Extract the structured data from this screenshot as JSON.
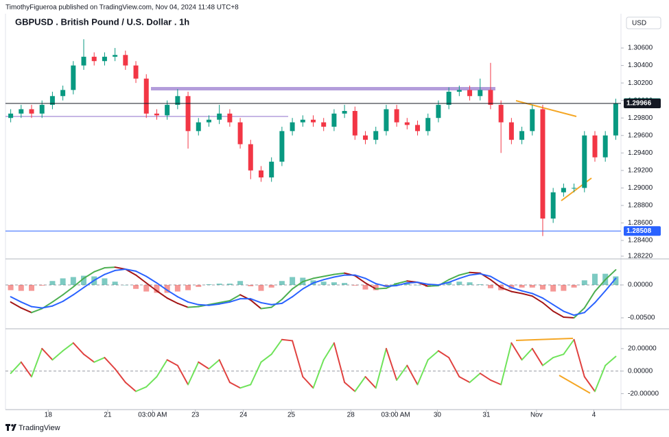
{
  "header": {
    "publisher": "TimothyFigueroa published on TradingView.com, Nov 04, 2024 11:48 UTC+8",
    "currency": "USD"
  },
  "footer": {
    "brand": "TradingView"
  },
  "chart_data": [
    {
      "type": "candlestick",
      "title": "GBPUSD . British Pound / U.S. Dollar . 1h",
      "up_color": "#089981",
      "down_color": "#f23645",
      "open": [
        1.298,
        1.2985,
        1.299,
        1.2985,
        1.2995,
        1.3005,
        1.3012,
        1.304,
        1.305,
        1.3045,
        1.305,
        1.3052,
        1.304,
        1.3025,
        1.2985,
        1.2983,
        1.2995,
        1.3005,
        1.2965,
        1.2975,
        1.2978,
        1.2985,
        1.2975,
        1.295,
        1.292,
        1.2912,
        1.293,
        1.2965,
        1.2975,
        1.2978,
        1.2975,
        1.297,
        1.2985,
        1.2988,
        1.296,
        1.2955,
        1.2965,
        1.299,
        1.2975,
        1.2972,
        1.2965,
        1.298,
        1.2995,
        1.301,
        1.3012,
        1.3005,
        1.3012,
        1.2995,
        1.2975,
        1.2955,
        1.2965,
        1.299,
        1.2865,
        1.2895,
        1.29,
        1.29,
        1.296,
        1.2935,
        1.296
      ],
      "high": [
        1.299,
        1.2995,
        1.2995,
        1.3,
        1.301,
        1.3017,
        1.3045,
        1.307,
        1.3055,
        1.3055,
        1.306,
        1.3057,
        1.3045,
        1.303,
        1.299,
        1.3,
        1.3013,
        1.301,
        1.298,
        1.2983,
        1.2995,
        1.299,
        1.298,
        1.2955,
        1.2925,
        1.2935,
        1.297,
        1.298,
        1.2983,
        1.2983,
        1.298,
        1.299,
        1.2995,
        1.2993,
        1.2965,
        1.297,
        1.2995,
        1.2995,
        1.298,
        1.2977,
        1.2985,
        1.3,
        1.3015,
        1.3017,
        1.3017,
        1.3025,
        1.3043,
        1.3,
        1.298,
        1.297,
        1.2995,
        1.2995,
        1.29,
        1.2905,
        1.2905,
        1.2965,
        1.2965,
        1.2965,
        1.3002
      ],
      "low": [
        1.2975,
        1.298,
        1.298,
        1.298,
        1.299,
        1.3,
        1.3007,
        1.3035,
        1.304,
        1.304,
        1.3045,
        1.3035,
        1.302,
        1.298,
        1.2978,
        1.2978,
        1.299,
        1.2945,
        1.296,
        1.297,
        1.2973,
        1.297,
        1.2945,
        1.291,
        1.2907,
        1.2907,
        1.2925,
        1.296,
        1.297,
        1.297,
        1.2965,
        1.2965,
        1.298,
        1.2955,
        1.295,
        1.295,
        1.296,
        1.297,
        1.2967,
        1.296,
        1.296,
        1.2975,
        1.299,
        1.3005,
        1.3,
        1.3,
        1.299,
        1.294,
        1.295,
        1.295,
        1.296,
        1.2845,
        1.286,
        1.289,
        1.2895,
        1.2895,
        1.293,
        1.293,
        1.2955
      ],
      "close": [
        1.2985,
        1.299,
        1.2985,
        1.2995,
        1.3005,
        1.3012,
        1.304,
        1.305,
        1.3045,
        1.305,
        1.3052,
        1.304,
        1.3025,
        1.2985,
        1.2983,
        1.2995,
        1.3005,
        1.2965,
        1.2975,
        1.2978,
        1.2985,
        1.2975,
        1.295,
        1.292,
        1.2912,
        1.293,
        1.2965,
        1.2975,
        1.2978,
        1.2975,
        1.297,
        1.2985,
        1.2988,
        1.296,
        1.2955,
        1.2965,
        1.299,
        1.2975,
        1.2972,
        1.2965,
        1.298,
        1.2995,
        1.301,
        1.3012,
        1.3005,
        1.3012,
        1.2995,
        1.2975,
        1.2955,
        1.2965,
        1.299,
        1.2865,
        1.2895,
        1.29,
        1.29,
        1.296,
        1.2935,
        1.296,
        1.2997
      ],
      "xlim": [
        0,
        59
      ],
      "xticks": [
        {
          "value": 4.1,
          "label": "18"
        },
        {
          "value": 9.8,
          "label": "21"
        },
        {
          "value": 14.1,
          "label": "03:00 AM"
        },
        {
          "value": 18.2,
          "label": "23"
        },
        {
          "value": 22.8,
          "label": "24"
        },
        {
          "value": 27.4,
          "label": "25"
        },
        {
          "value": 33.1,
          "label": "28"
        },
        {
          "value": 37.4,
          "label": "03:00 AM"
        },
        {
          "value": 41.4,
          "label": "30"
        },
        {
          "value": 46.1,
          "label": "31"
        },
        {
          "value": 50.9,
          "label": "Nov"
        },
        {
          "value": 56.4,
          "label": "4"
        }
      ],
      "ylim": [
        1.28212,
        1.30992
      ],
      "yticks": [
        {
          "value": 1.2822,
          "label": "1.28220"
        },
        {
          "value": 1.284,
          "label": "1.28400"
        },
        {
          "value": 1.286,
          "label": "1.28600"
        },
        {
          "value": 1.288,
          "label": "1.28800"
        },
        {
          "value": 1.29,
          "label": "1.29000"
        },
        {
          "value": 1.292,
          "label": "1.29200"
        },
        {
          "value": 1.294,
          "label": "1.29400"
        },
        {
          "value": 1.296,
          "label": "1.29600"
        },
        {
          "value": 1.298,
          "label": "1.29800"
        },
        {
          "value": 1.3,
          "label": "1.30000"
        },
        {
          "value": 1.302,
          "label": "1.30200"
        },
        {
          "value": 1.304,
          "label": "1.30400"
        },
        {
          "value": 1.306,
          "label": "1.30600"
        }
      ],
      "price_labels": [
        {
          "value": 1.2997,
          "label": "1.29970",
          "color": "#089981",
          "line": false
        },
        {
          "value": 1.29966,
          "label": "1.29966",
          "color": "#131722",
          "line": true
        },
        {
          "value": 1.28508,
          "label": "1.28508",
          "color": "#2962ff",
          "line": true
        }
      ]
    },
    {
      "type": "macd",
      "series": [
        {
          "color": "#4caf50",
          "falling_color": "#a31515",
          "values": [
            -0.0026,
            -0.0035,
            -0.0042,
            -0.0036,
            -0.0026,
            -0.0015,
            -0.0003,
            0.001,
            0.002,
            0.0026,
            0.0027,
            0.0024,
            0.0015,
            0.0003,
            -0.0009,
            -0.002,
            -0.0028,
            -0.0034,
            -0.0033,
            -0.003,
            -0.0027,
            -0.0024,
            -0.0015,
            -0.0023,
            -0.0036,
            -0.0034,
            -0.0022,
            -0.0006,
            0.0005,
            0.001,
            0.0013,
            0.0016,
            0.0018,
            0.0014,
            0.0003,
            -0.0006,
            -0.0005,
            0.0002,
            0.0006,
            0.0004,
            -0.0002,
            -0.0001,
            0.0008,
            0.0015,
            0.0019,
            0.0018,
            0.0008,
            -0.0004,
            -0.001,
            -0.0013,
            -0.0017,
            -0.0027,
            -0.004,
            -0.0049,
            -0.005,
            -0.0035,
            -0.001,
            0.0008,
            0.0023
          ]
        },
        {
          "color": "#2962ff",
          "values": [
            -0.0018,
            -0.0026,
            -0.0033,
            -0.0035,
            -0.0032,
            -0.0025,
            -0.0015,
            -0.0004,
            0.0007,
            0.0016,
            0.0022,
            0.0024,
            0.0021,
            0.0013,
            0.0003,
            -0.0008,
            -0.0018,
            -0.0026,
            -0.003,
            -0.0031,
            -0.0029,
            -0.0026,
            -0.0021,
            -0.0021,
            -0.0027,
            -0.003,
            -0.0028,
            -0.0018,
            -0.0006,
            0.0003,
            0.0008,
            0.0012,
            0.0015,
            0.0015,
            0.001,
            0.0002,
            -0.0002,
            -0.0001,
            0.0003,
            0.0004,
            0.0001,
            0.0,
            0.0004,
            0.001,
            0.0015,
            0.0017,
            0.0013,
            0.0004,
            -0.0004,
            -0.0009,
            -0.0013,
            -0.002,
            -0.003,
            -0.004,
            -0.0046,
            -0.0042,
            -0.0027,
            -0.0009,
            0.001
          ]
        }
      ],
      "histogram": {
        "up_color": "#26a69a",
        "down_color": "#ef5350",
        "values": [
          -0.0008,
          -0.0009,
          -0.0009,
          -0.0001,
          0.0006,
          0.001,
          0.0012,
          0.0014,
          0.0013,
          0.001,
          0.0005,
          0.0,
          -0.0006,
          -0.001,
          -0.0012,
          -0.0012,
          -0.001,
          -0.0008,
          -0.0003,
          0.0001,
          0.0002,
          0.0002,
          0.0006,
          -0.0002,
          -0.0009,
          -0.0004,
          0.0006,
          0.0012,
          0.0011,
          0.0007,
          0.0005,
          0.0004,
          0.0003,
          -0.0001,
          -0.0007,
          -0.0008,
          -0.0003,
          0.0003,
          0.0003,
          0.0,
          -0.0003,
          -0.0001,
          0.0004,
          0.0005,
          0.0004,
          0.0001,
          -0.0005,
          -0.0008,
          -0.0006,
          -0.0004,
          -0.0004,
          -0.0007,
          -0.001,
          -0.0009,
          -0.0004,
          0.0007,
          0.0017,
          0.0017,
          0.0013
        ]
      },
      "ylim": [
        -0.00646,
        0.00375
      ],
      "yticks": [
        {
          "value": 0,
          "label": "0.00000"
        },
        {
          "value": -0.005,
          "label": "-0.00500"
        }
      ]
    },
    {
      "type": "oscillator",
      "series": [
        {
          "color": "#6fe35a",
          "falling_color": "#e0413f",
          "values": [
            -2,
            8,
            -5,
            20,
            10,
            18,
            25,
            15,
            8,
            12,
            2,
            -10,
            -18,
            -14,
            -5,
            10,
            5,
            -12,
            8,
            2,
            10,
            -10,
            -15,
            -12,
            8,
            15,
            28,
            27,
            -5,
            -15,
            10,
            25,
            -10,
            -18,
            -5,
            -15,
            20,
            -8,
            5,
            -12,
            10,
            18,
            12,
            -5,
            -10,
            -2,
            -8,
            -12,
            25,
            10,
            20,
            5,
            12,
            15,
            28,
            -5,
            -18,
            5,
            13
          ]
        }
      ],
      "ylim": [
        -33,
        36.4
      ],
      "yticks": [
        {
          "value": 20,
          "label": "20.00000"
        },
        {
          "value": 0,
          "label": "0.00000"
        },
        {
          "value": -20,
          "label": "-20.00000"
        }
      ]
    }
  ]
}
